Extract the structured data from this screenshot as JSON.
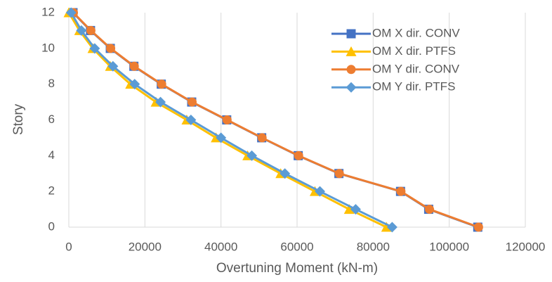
{
  "chart_data": {
    "type": "line",
    "x_label": "Overtuning Moment (kN-m)",
    "y_label": "Story",
    "xlim": [
      0,
      120000
    ],
    "xticks": [
      0,
      20000,
      40000,
      60000,
      80000,
      100000,
      120000
    ],
    "ylim": [
      0,
      12
    ],
    "yticks": [
      0,
      2,
      4,
      6,
      8,
      10,
      12
    ],
    "grid": "x",
    "legend": "upper right",
    "series": [
      {
        "name": "OM X dir. CONV",
        "color": "#4472c4",
        "marker": "square",
        "x": [
          107500,
          94600,
          87200,
          71000,
          60300,
          50700,
          41500,
          32300,
          24300,
          17100,
          10900,
          5700,
          1100
        ],
        "values": [
          0,
          1,
          2,
          3,
          4,
          5,
          6,
          7,
          8,
          9,
          10,
          11,
          12
        ]
      },
      {
        "name": "OM X dir. PTFS",
        "color": "#ffc000",
        "marker": "triangle",
        "x": [
          83500,
          73700,
          64700,
          55700,
          47000,
          38700,
          31000,
          22900,
          16200,
          10900,
          6300,
          2800,
          0
        ],
        "values": [
          0,
          1,
          2,
          3,
          4,
          5,
          6,
          7,
          8,
          9,
          10,
          11,
          12
        ]
      },
      {
        "name": "OM Y dir. CONV",
        "color": "#ed7d31",
        "marker": "circle",
        "x": [
          107700,
          94800,
          87300,
          71100,
          60400,
          50800,
          41600,
          32400,
          24400,
          17200,
          11000,
          5800,
          1200
        ],
        "values": [
          0,
          1,
          2,
          3,
          4,
          5,
          6,
          7,
          8,
          9,
          10,
          11,
          12
        ]
      },
      {
        "name": "OM Y dir. PTFS",
        "color": "#5b9bd5",
        "marker": "diamond",
        "x": [
          85000,
          75400,
          66000,
          56800,
          48100,
          40000,
          32100,
          24100,
          17300,
          11600,
          6800,
          3300,
          600
        ],
        "values": [
          0,
          1,
          2,
          3,
          4,
          5,
          6,
          7,
          8,
          9,
          10,
          11,
          12
        ]
      }
    ]
  }
}
